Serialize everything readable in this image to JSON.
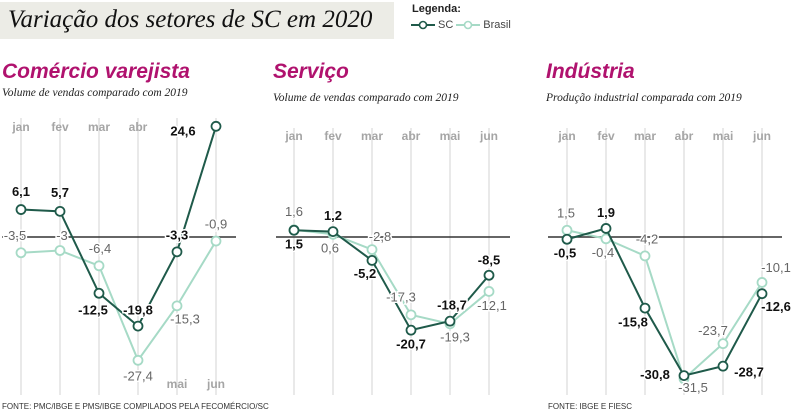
{
  "header": {
    "title": "Variação dos setores de SC em 2020",
    "legend_title": "Legenda:",
    "legend_sc": "SC",
    "legend_brasil": "Brasil"
  },
  "colors": {
    "sc": "#1f5a4a",
    "brasil": "#a6dac6",
    "title": "#b0126e",
    "grid": "#e2e2e2",
    "zero": "#333333"
  },
  "chart_data": [
    {
      "type": "line",
      "title": "Comércio varejista",
      "subtitle": "Volume de vendas comparado com 2019",
      "categories": [
        "jan",
        "fev",
        "mar",
        "abr",
        "mai",
        "jun"
      ],
      "series": [
        {
          "name": "SC",
          "values": [
            6.1,
            5.7,
            -12.5,
            -19.8,
            -3.3,
            24.6
          ],
          "labels": [
            "6,1",
            "5,7",
            "-12,5",
            "-19,8",
            "-3,3",
            "24,6"
          ]
        },
        {
          "name": "Brasil",
          "values": [
            -3.5,
            -3,
            -6.4,
            -27.4,
            -15.3,
            -0.9
          ],
          "labels": [
            "-3,5",
            "-3",
            "-6,4",
            "-27,4",
            "-15,3",
            "-0,9"
          ]
        }
      ],
      "source": "FONTE: PMC/IBGE E PMS/IBGE COMPILADOS PELA FECOMÉRCIO/SC"
    },
    {
      "type": "line",
      "title": "Serviço",
      "subtitle": "Volume de vendas comparado com 2019",
      "categories": [
        "jan",
        "fev",
        "mar",
        "abr",
        "mai",
        "jun"
      ],
      "series": [
        {
          "name": "SC",
          "values": [
            1.5,
            1.2,
            -5.2,
            -20.7,
            -18.7,
            -8.5
          ],
          "labels": [
            "1,5",
            "1,2",
            "-5,2",
            "-20,7",
            "-18,7",
            "-8,5"
          ]
        },
        {
          "name": "Brasil",
          "values": [
            1.6,
            0.6,
            -2.8,
            -17.3,
            -19.3,
            -12.1
          ],
          "labels": [
            "1,6",
            "0,6",
            "-2,8",
            "-17,3",
            "-19,3",
            "-12,1"
          ]
        }
      ]
    },
    {
      "type": "line",
      "title": "Indústria",
      "subtitle": "Produção industrial comparada com 2019",
      "categories": [
        "jan",
        "fev",
        "mar",
        "abr",
        "mai",
        "jun"
      ],
      "series": [
        {
          "name": "SC",
          "values": [
            -0.5,
            1.9,
            -15.8,
            -30.8,
            -28.7,
            -12.6
          ],
          "labels": [
            "-0,5",
            "1,9",
            "-15,8",
            "-30,8",
            "-28,7",
            "-12,6"
          ]
        },
        {
          "name": "Brasil",
          "values": [
            1.5,
            -0.4,
            -4.2,
            -31.5,
            -23.7,
            -10.1
          ],
          "labels": [
            "1,5",
            "-0,4",
            "-4,2",
            "-31,5",
            "-23,7",
            "-10,1"
          ]
        }
      ],
      "source": "FONTE: IBGE E FIESC"
    }
  ]
}
